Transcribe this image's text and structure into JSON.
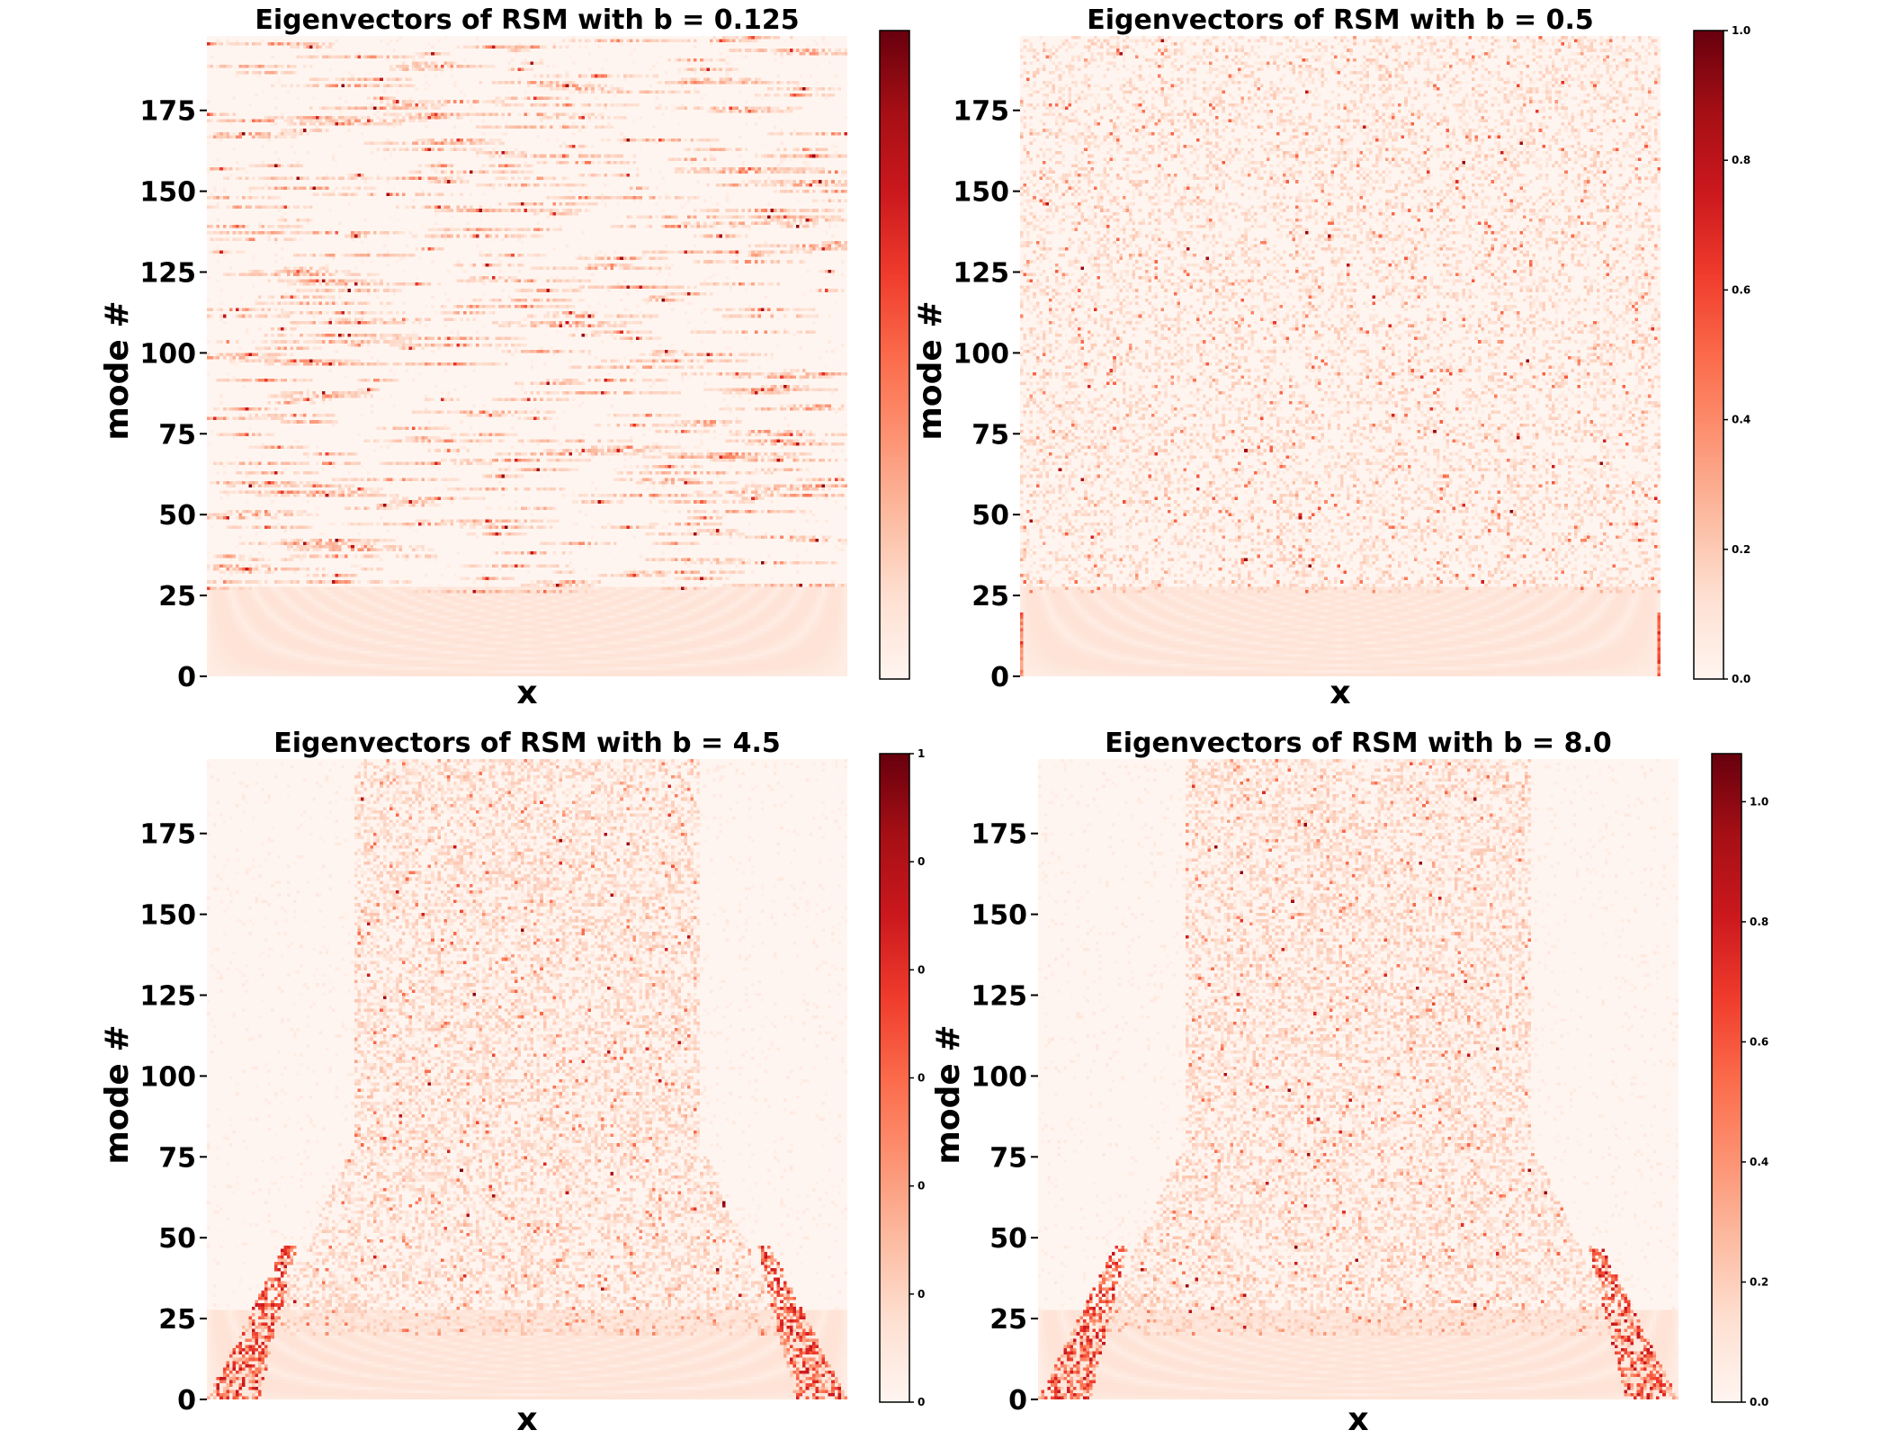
{
  "chart_data": [
    {
      "type": "heatmap",
      "title": "Eigenvectors of RSM with b = 0.125",
      "xlabel": "x",
      "ylabel": "mode #",
      "y_ticks": [
        "0",
        "25",
        "50",
        "75",
        "100",
        "125",
        "150",
        "175"
      ],
      "y_range": [
        0,
        198
      ],
      "colormap": "Reds",
      "colorbar_ticks": [],
      "colorbar_range": [
        0,
        1
      ],
      "pattern": "localized_rows",
      "seed": 11
    },
    {
      "type": "heatmap",
      "title": "Eigenvectors of RSM with b = 0.5",
      "xlabel": "x",
      "ylabel": "mode #",
      "y_ticks": [
        "0",
        "25",
        "50",
        "75",
        "100",
        "125",
        "150",
        "175"
      ],
      "y_range": [
        0,
        198
      ],
      "colormap": "Reds",
      "colorbar_ticks": [
        "0.0",
        "0.2",
        "0.4",
        "0.6",
        "0.8",
        "1.0"
      ],
      "colorbar_range": [
        0,
        1
      ],
      "pattern": "semi_localized",
      "seed": 23
    },
    {
      "type": "heatmap",
      "title": "Eigenvectors of RSM with b = 4.5",
      "xlabel": "x",
      "ylabel": "mode #",
      "y_ticks": [
        "0",
        "25",
        "50",
        "75",
        "100",
        "125",
        "150",
        "175"
      ],
      "y_range": [
        0,
        198
      ],
      "colormap": "Reds",
      "colorbar_ticks": [
        "0",
        "0",
        "0",
        "0",
        "0",
        "0",
        "1"
      ],
      "colorbar_range": [
        0,
        1.2
      ],
      "pattern": "extended_corners",
      "seed": 37
    },
    {
      "type": "heatmap",
      "title": "Eigenvectors of RSM with b = 8.0",
      "xlabel": "x",
      "ylabel": "mode #",
      "y_ticks": [
        "0",
        "25",
        "50",
        "75",
        "100",
        "125",
        "150",
        "175"
      ],
      "y_range": [
        0,
        198
      ],
      "colormap": "Reds",
      "colorbar_ticks": [
        "0.0",
        "0.2",
        "0.4",
        "0.6",
        "0.8",
        "1.0"
      ],
      "colorbar_range": [
        0,
        1.08
      ],
      "pattern": "extended_corners",
      "seed": 53
    }
  ],
  "colors": {
    "cmap_stops": [
      "#fff5f0",
      "#fee0d2",
      "#fcbba1",
      "#fc9272",
      "#fb6a4a",
      "#ef3b2c",
      "#cb181d",
      "#a50f15",
      "#67000d"
    ]
  }
}
